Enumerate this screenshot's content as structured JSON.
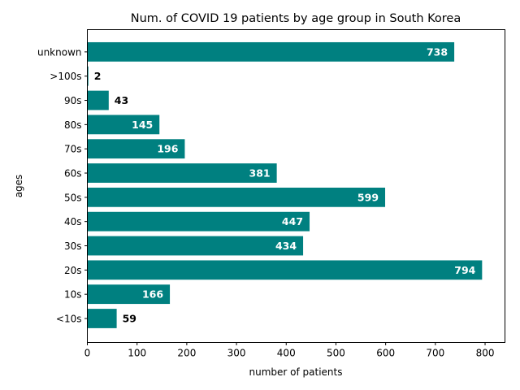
{
  "chart_data": {
    "type": "bar",
    "orientation": "horizontal",
    "title": "Num. of COVID 19 patients by age group in South Korea",
    "xlabel": "number of patients",
    "ylabel": "ages",
    "categories": [
      "<10s",
      "10s",
      "20s",
      "30s",
      "40s",
      "50s",
      "60s",
      "70s",
      "80s",
      "90s",
      ">100s",
      "unknown"
    ],
    "values": [
      59,
      166,
      794,
      434,
      447,
      599,
      381,
      196,
      145,
      43,
      2,
      738
    ],
    "xlim": [
      0,
      840
    ],
    "xticks": [
      0,
      100,
      200,
      300,
      400,
      500,
      600,
      700,
      800
    ],
    "grid": false,
    "colors": {
      "bar": "#008080",
      "label_inside": "#ffffff",
      "label_outside": "#000000"
    }
  }
}
